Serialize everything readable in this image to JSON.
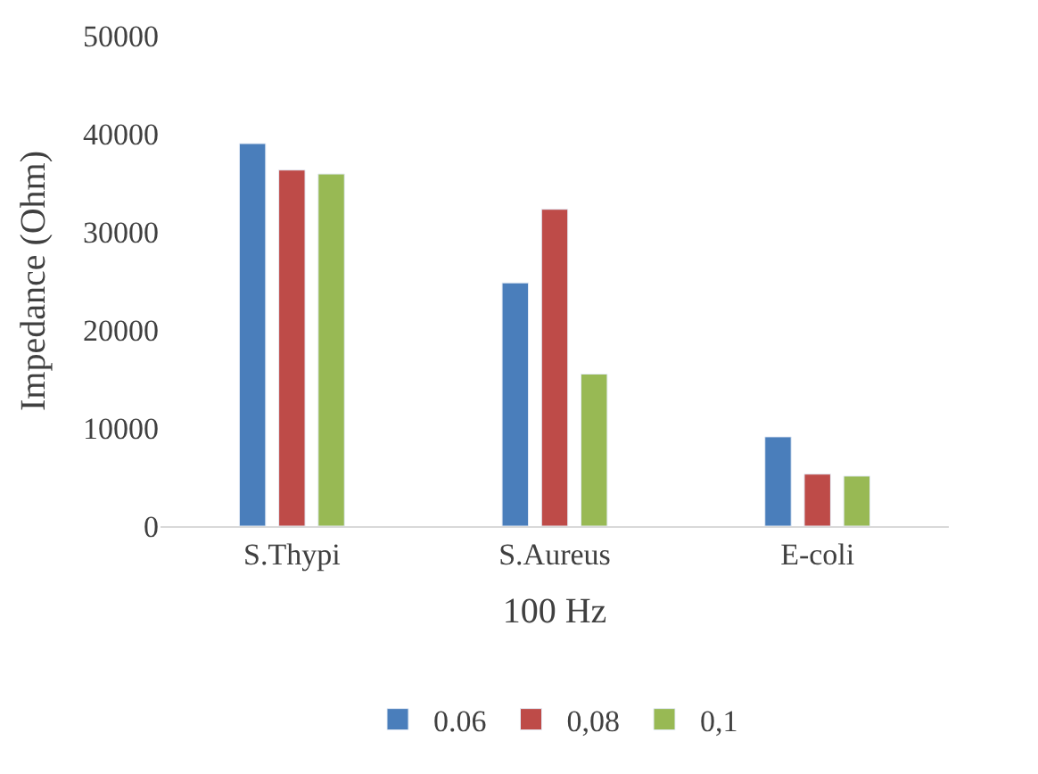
{
  "chart_data": {
    "type": "bar",
    "xlabel": "100 Hz",
    "ylabel": "Impedance (Ohm)",
    "categories": [
      "S.Thypi",
      "S.Aureus",
      "E-coli"
    ],
    "series": [
      {
        "name": "0.06",
        "color": "#4a7ebb",
        "values": [
          39000,
          24800,
          9100
        ]
      },
      {
        "name": "0,08",
        "color": "#be4b48",
        "values": [
          36300,
          32300,
          5300
        ]
      },
      {
        "name": "0,1",
        "color": "#98b954",
        "values": [
          35900,
          15500,
          5100
        ]
      }
    ],
    "ylim": [
      0,
      50000
    ],
    "yticks": [
      0,
      10000,
      20000,
      30000,
      40000,
      50000
    ],
    "grid": false,
    "legend": "bottom"
  }
}
